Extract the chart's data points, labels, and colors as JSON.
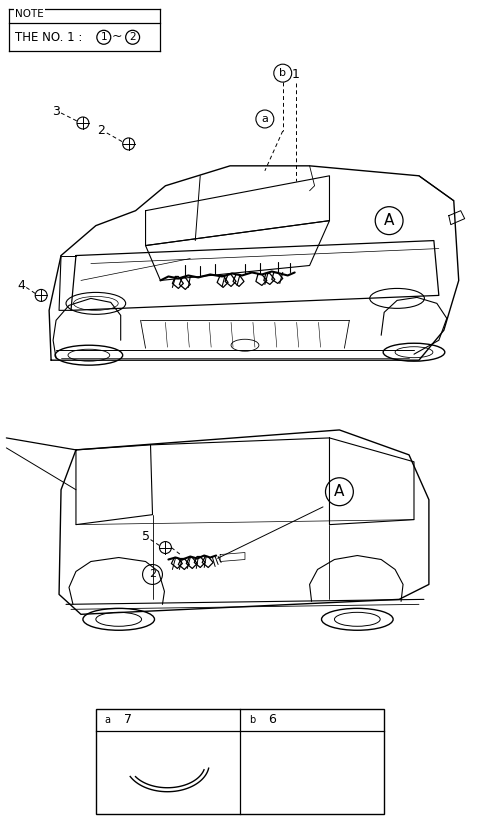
{
  "bg_color": "#ffffff",
  "line_color": "#000000",
  "fig_width": 4.8,
  "fig_height": 8.26,
  "dpi": 100,
  "note_text": "NOTE",
  "note_body": "THE NO. 1 : ",
  "table_a_label": "a",
  "table_b_label": "b",
  "table_num_left": "7",
  "table_num_right": "6"
}
